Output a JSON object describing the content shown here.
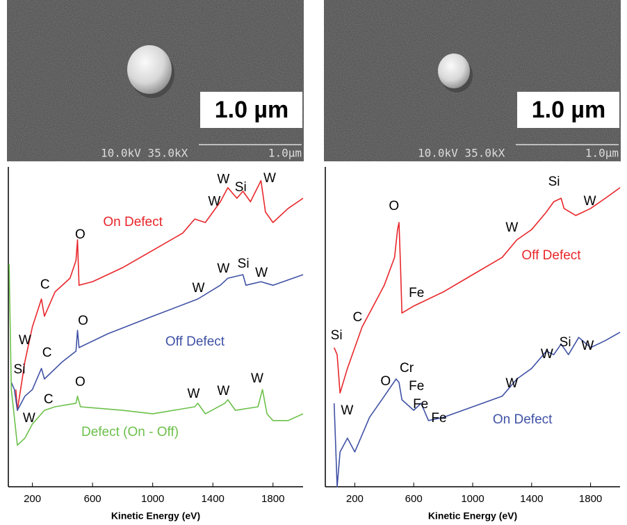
{
  "images": [
    {
      "scale_label": "1.0 µm",
      "info": "10.0kV 35.0kX",
      "bar_label": "1.0µm"
    },
    {
      "scale_label": "1.0 µm",
      "info": "10.0kV 35.0kX",
      "bar_label": "1.0µm"
    }
  ],
  "chart_data": [
    {
      "type": "line",
      "x_label": "Kinetic Energy (eV)",
      "xlim": [
        40,
        2000
      ],
      "xticks": [
        200,
        600,
        1000,
        1400,
        1800
      ],
      "ylim": [
        0,
        100
      ],
      "series": [
        {
          "color": "#e8262a",
          "x": [
            90,
            100,
            150,
            200,
            260,
            280,
            350,
            450,
            490,
            500,
            510,
            600,
            800,
            1000,
            1200,
            1280,
            1350,
            1450,
            1500,
            1560,
            1600,
            1650,
            1720,
            1750,
            1800,
            1900,
            2000
          ],
          "values": [
            30.4,
            23.9,
            39.1,
            50,
            58.7,
            53.3,
            60.9,
            65.2,
            70.7,
            77.2,
            63,
            64.1,
            68.5,
            73.9,
            79.3,
            83.7,
            82.6,
            89.1,
            93.5,
            90.2,
            92.4,
            89.1,
            95.7,
            85.9,
            82.6,
            87,
            90.2
          ]
        },
        {
          "color": "#3f51a5",
          "x": [
            60,
            80,
            100,
            150,
            200,
            260,
            280,
            400,
            490,
            500,
            510,
            700,
            1000,
            1300,
            1450,
            1500,
            1600,
            1620,
            1720,
            1800,
            2000
          ],
          "values": [
            32.6,
            30.4,
            23.9,
            28.3,
            30.4,
            37,
            33.7,
            39.1,
            42.4,
            48.9,
            43.5,
            47.8,
            53.3,
            58.7,
            63,
            65.2,
            66.3,
            63,
            64.1,
            63,
            66.3
          ]
        },
        {
          "color": "#6cc04a",
          "x": [
            45,
            60,
            100,
            150,
            200,
            280,
            350,
            490,
            500,
            520,
            800,
            1000,
            1280,
            1300,
            1350,
            1480,
            1500,
            1550,
            1700,
            1730,
            1760,
            1800,
            1900,
            2000
          ],
          "values": [
            69.6,
            30.4,
            13,
            15.2,
            19.6,
            23.9,
            25,
            26.1,
            28.3,
            25,
            23.9,
            22.8,
            25,
            26.1,
            22.8,
            26.1,
            27.2,
            23.9,
            25,
            30.4,
            22.8,
            20.7,
            20.7,
            22.8
          ]
        }
      ],
      "annotations": [
        {
          "text": "On Defect",
          "x": 868,
          "y": 82.6,
          "color": "#e8262a"
        },
        {
          "text": "W",
          "x": 1410,
          "y": 89
        },
        {
          "text": "W",
          "x": 1470,
          "y": 96
        },
        {
          "text": "Si",
          "x": 1585,
          "y": 93.5
        },
        {
          "text": "W",
          "x": 1778,
          "y": 96.3
        },
        {
          "text": "O",
          "x": 518,
          "y": 78.7
        },
        {
          "text": "C",
          "x": 284,
          "y": 63
        },
        {
          "text": "W",
          "x": 150,
          "y": 45.7
        },
        {
          "text": "Si",
          "x": 114,
          "y": 36.5
        },
        {
          "text": "C",
          "x": 297,
          "y": 41.7
        },
        {
          "text": "O",
          "x": 537,
          "y": 51.7
        },
        {
          "text": "Off Defect",
          "x": 1281,
          "y": 45.2,
          "color": "#3f51a5"
        },
        {
          "text": "W",
          "x": 1304,
          "y": 62
        },
        {
          "text": "W",
          "x": 1470,
          "y": 68
        },
        {
          "text": "Si",
          "x": 1603,
          "y": 69.6
        },
        {
          "text": "W",
          "x": 1723,
          "y": 66.7
        },
        {
          "text": "O",
          "x": 518,
          "y": 32.6
        },
        {
          "text": "C",
          "x": 307,
          "y": 27.2
        },
        {
          "text": "W",
          "x": 178,
          "y": 21.3
        },
        {
          "text": "W",
          "x": 1272,
          "y": 28.9
        },
        {
          "text": "W",
          "x": 1470,
          "y": 29.8
        },
        {
          "text": "W",
          "x": 1695,
          "y": 33.7
        },
        {
          "text": "Defect (On - Off)",
          "x": 849,
          "y": 17,
          "color": "#6cc04a"
        }
      ]
    },
    {
      "type": "line",
      "x_label": "Kinetic Energy (eV)",
      "xlim": [
        0,
        2000
      ],
      "xticks": [
        200,
        600,
        1000,
        1400,
        1800
      ],
      "ylim": [
        0,
        100
      ],
      "series": [
        {
          "color": "#e8262a",
          "x": [
            60,
            80,
            100,
            150,
            200,
            250,
            300,
            400,
            470,
            490,
            500,
            510,
            520,
            600,
            800,
            1000,
            1200,
            1300,
            1400,
            1500,
            1550,
            1600,
            1620,
            1700,
            1800,
            1900,
            2000
          ],
          "values": [
            43.5,
            41.3,
            29.3,
            37,
            43.5,
            50,
            54.3,
            63,
            71.7,
            80.4,
            82.6,
            69.6,
            54.3,
            56.5,
            60.9,
            66.3,
            71.7,
            77.2,
            80.4,
            85.9,
            89.1,
            90.2,
            87,
            84.8,
            87,
            90.2,
            93.5
          ]
        },
        {
          "color": "#3f51a5",
          "x": [
            60,
            80,
            100,
            150,
            200,
            300,
            400,
            480,
            500,
            520,
            600,
            650,
            700,
            800,
            1000,
            1200,
            1300,
            1400,
            1500,
            1550,
            1600,
            1650,
            1720,
            1800,
            1900,
            2000
          ],
          "values": [
            26.1,
            0,
            10.9,
            15.2,
            10.9,
            21.7,
            28.3,
            33.7,
            32.6,
            27.2,
            23.9,
            26.1,
            20.7,
            21.7,
            25,
            28.3,
            33.7,
            37,
            42.4,
            41.3,
            44.6,
            41.3,
            46.7,
            43.5,
            45.7,
            48.3
          ]
        }
      ],
      "annotations": [
        {
          "text": "O",
          "x": 466,
          "y": 87.6
        },
        {
          "text": "Si",
          "x": 1552,
          "y": 95.2
        },
        {
          "text": "W",
          "x": 1795,
          "y": 89.1
        },
        {
          "text": "W",
          "x": 1266,
          "y": 80.9
        },
        {
          "text": "Off Defect",
          "x": 1533,
          "y": 72.2,
          "color": "#e8262a"
        },
        {
          "text": "Fe",
          "x": 619,
          "y": 60.4
        },
        {
          "text": "C",
          "x": 219,
          "y": 52.8
        },
        {
          "text": "Si",
          "x": 76,
          "y": 47.2
        },
        {
          "text": "Cr",
          "x": 552,
          "y": 37
        },
        {
          "text": "Fe",
          "x": 619,
          "y": 31.3
        },
        {
          "text": "O",
          "x": 409,
          "y": 32.8
        },
        {
          "text": "Fe",
          "x": 647,
          "y": 25.7
        },
        {
          "text": "Fe",
          "x": 771,
          "y": 21.3
        },
        {
          "text": "W",
          "x": 1266,
          "y": 32.2
        },
        {
          "text": "W",
          "x": 1504,
          "y": 41.3
        },
        {
          "text": "Si",
          "x": 1628,
          "y": 45
        },
        {
          "text": "W",
          "x": 1780,
          "y": 43.9
        },
        {
          "text": "W",
          "x": 148,
          "y": 23.7
        },
        {
          "text": "On Defect",
          "x": 1338,
          "y": 20.9,
          "color": "#3f51a5"
        }
      ]
    }
  ]
}
